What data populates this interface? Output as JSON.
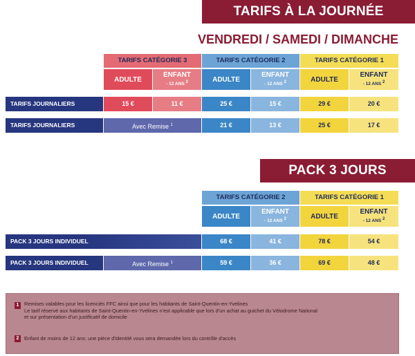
{
  "section1": {
    "title": "TARIFS À LA JOURNÉE",
    "subtitle": "VENDREDI / SAMEDI / DIMANCHE",
    "categories": [
      "TARIFS CATÉGORIE 3",
      "TARIFS CATÉGORIE 2",
      "TARIFS CATÉGORIE 1"
    ],
    "adult_label": "ADULTE",
    "child_label": "ENFANT",
    "child_note": "- 12 ANS",
    "child_sup": "2",
    "rows": [
      {
        "label": "TARIFS JOURNALIERS",
        "cat3_adult": "15 €",
        "cat3_child": "11 €",
        "cat2_adult": "25 €",
        "cat2_child": "15 €",
        "cat1_adult": "29 €",
        "cat1_child": "20 €"
      },
      {
        "label": "TARIFS JOURNALIERS",
        "remise": "Avec Remise",
        "remise_sup": "1",
        "cat2_adult": "21 €",
        "cat2_child": "13 €",
        "cat1_adult": "25 €",
        "cat1_child": "17 €"
      }
    ]
  },
  "section2": {
    "title": "PACK 3 JOURS",
    "categories": [
      "TARIFS CATÉGORIE 2",
      "TARIFS CATÉGORIE 1"
    ],
    "adult_label": "ADULTE",
    "child_label": "ENFANT",
    "child_note": "- 12 ANS",
    "child_sup": "2",
    "rows": [
      {
        "label": "PACK 3 JOURS INDIVIDUEL",
        "cat2_adult": "68 €",
        "cat2_child": "41 €",
        "cat1_adult": "78 €",
        "cat1_child": "54 €"
      },
      {
        "label": "PACK 3 JOURS INDIVIDUEL",
        "remise": "Avec Remise",
        "remise_sup": "1",
        "cat2_adult": "59 €",
        "cat2_child": "36 €",
        "cat1_adult": "69 €",
        "cat1_child": "48 €"
      }
    ]
  },
  "notes": [
    {
      "num": "1",
      "lines": [
        "Remises valables pour les licenciés FFC ainsi que pour les habitants de Saint-Quentin-en-Yvelines",
        "Le tarif réservé aux habitants de Saint-Quentin-en-Yvelines n'est applicable que lors d'un achat au guichet du Vélodrome National",
        "et sur présentation d'un justificatif de domicile"
      ]
    },
    {
      "num": "2",
      "lines": [
        "Enfant de moins de 12 ans: une pièce d'identité vous sera demandée lors du contrôle d'accès"
      ]
    }
  ],
  "colors": {
    "brand": "#8a1c34",
    "navy": "#26367f",
    "cat3": "#e04b5b",
    "cat2": "#3b86c6",
    "cat1": "#f2d43d"
  }
}
